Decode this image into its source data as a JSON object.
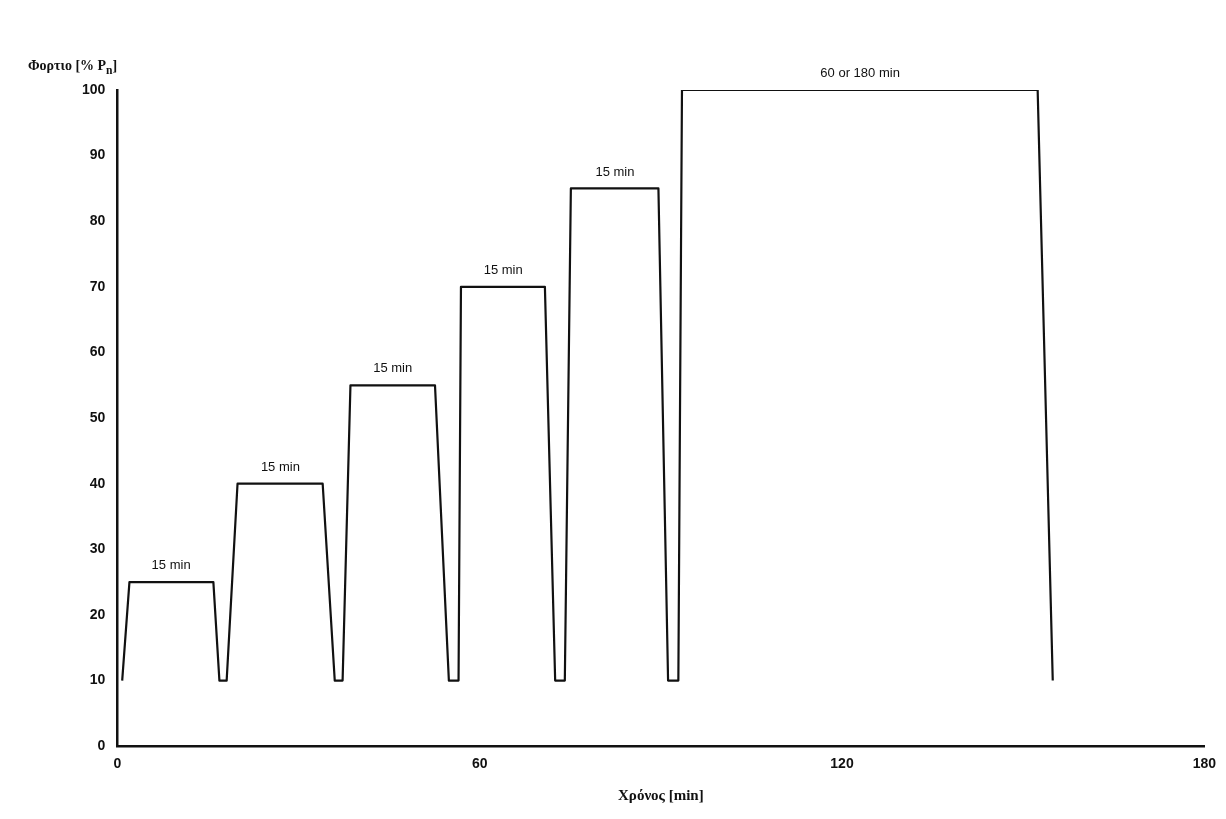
{
  "chart_data": {
    "type": "line",
    "xlabel": "Χρόνος [min]",
    "ylabel": "Φορτιο [% P$_{n}$]",
    "series": [
      {
        "color": "#111111",
        "x": [
          0.8,
          2.0,
          15.9,
          16.9,
          18.1,
          19.9,
          34.0,
          36.0,
          37.3,
          38.6,
          52.6,
          54.9,
          56.5,
          56.9,
          70.8,
          72.5,
          74.1,
          75.1,
          89.6,
          91.2,
          92.9,
          93.5,
          152.4,
          154.9
        ],
        "values": [
          10,
          25,
          25,
          10,
          10,
          40,
          40,
          10,
          10,
          55,
          55,
          10,
          10,
          70,
          70,
          10,
          10,
          85,
          85,
          10,
          10,
          100,
          100,
          10
        ]
      }
    ],
    "xlim": [
      0,
      180
    ],
    "xticks": [
      0,
      60,
      120,
      180
    ],
    "ylim": [
      0,
      100
    ],
    "yticks": [
      0,
      10,
      20,
      30,
      40,
      50,
      60,
      70,
      80,
      90,
      100
    ],
    "grid": false,
    "legend": false,
    "marker": "none",
    "line_style": "solid",
    "annotations": [
      {
        "text": "15 min",
        "x": 8.9,
        "y": 25
      },
      {
        "text": "15 min",
        "x": 27,
        "y": 40
      },
      {
        "text": "15 min",
        "x": 45.6,
        "y": 55
      },
      {
        "text": "15 min",
        "x": 63.9,
        "y": 70
      },
      {
        "text": "15 min",
        "x": 82.4,
        "y": 85
      },
      {
        "text": "60 or 180 min",
        "x": 123,
        "y": 100
      }
    ]
  }
}
